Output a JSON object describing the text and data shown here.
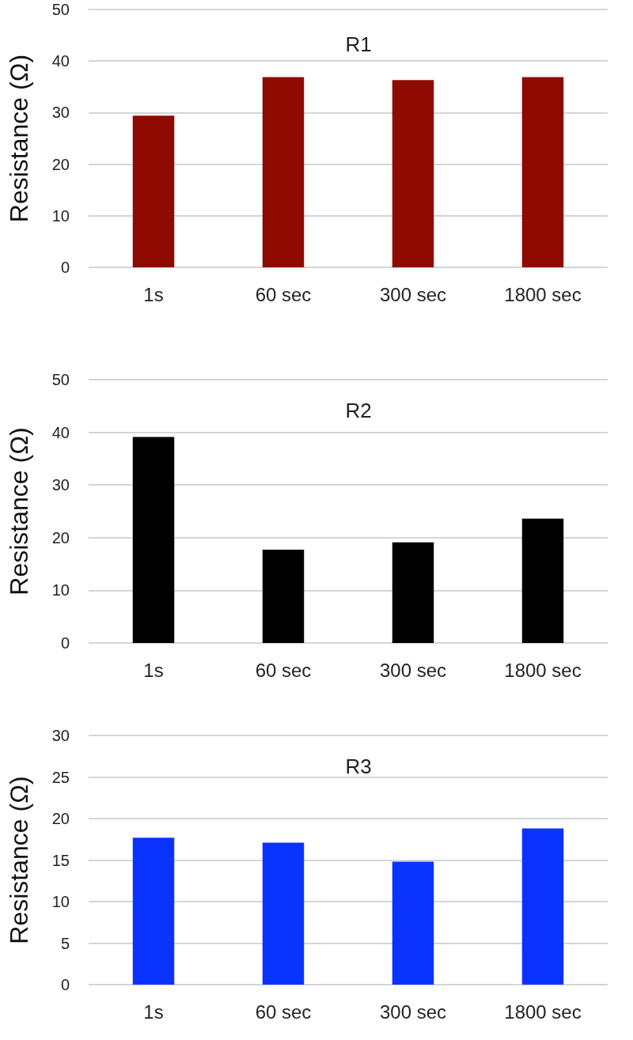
{
  "chart_data": [
    {
      "type": "bar",
      "title": "R1",
      "ylabel": "Resistance (Ω)",
      "categories": [
        "1s",
        "60 sec",
        "300 sec",
        "1800 sec"
      ],
      "values": [
        29.4,
        36.9,
        36.3,
        36.9
      ],
      "color": "#8f0a00",
      "ylim": [
        0,
        50
      ],
      "yticks": [
        0,
        10,
        20,
        30,
        40,
        50
      ],
      "grid": "y"
    },
    {
      "type": "bar",
      "title": "R2",
      "ylabel": "Resistance (Ω)",
      "categories": [
        "1s",
        "60 sec",
        "300 sec",
        "1800 sec"
      ],
      "values": [
        39.1,
        17.7,
        19.1,
        23.6
      ],
      "color": "#000000",
      "ylim": [
        0,
        50
      ],
      "yticks": [
        0,
        10,
        20,
        30,
        40,
        50
      ],
      "grid": "y"
    },
    {
      "type": "bar",
      "title": "R3",
      "ylabel": "Resistance (Ω)",
      "categories": [
        "1s",
        "60 sec",
        "300 sec",
        "1800 sec"
      ],
      "values": [
        17.7,
        17.1,
        14.8,
        18.8
      ],
      "color": "#0a33ff",
      "ylim": [
        0,
        30
      ],
      "yticks": [
        0,
        5,
        10,
        15,
        20,
        25,
        30
      ],
      "grid": "y"
    }
  ]
}
